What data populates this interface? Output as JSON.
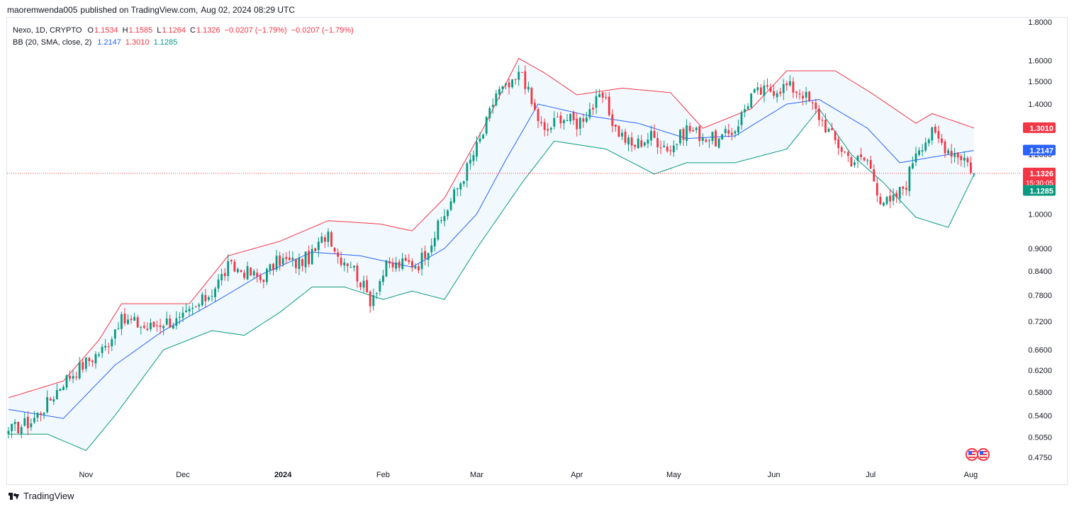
{
  "header": {
    "author": "maoremwenda005",
    "published_text": "published on TradingView.com,",
    "date_text": "Aug 02, 2024 08:29 UTC"
  },
  "legend": {
    "symbol": "Nexo, 1D, CRYPTO",
    "o_label": "O",
    "o_value": "1.1534",
    "h_label": "H",
    "h_value": "1.1585",
    "l_label": "L",
    "l_value": "1.1264",
    "c_label": "C",
    "c_value": "1.1326",
    "change": "−0.0207 (−1.79%)",
    "change2": "−0.0207 (−1.79%)",
    "bb_label": "BB (20, SMA, close, 2)",
    "bb_basis": "1.2147",
    "bb_upper": "1.3010",
    "bb_lower": "1.1285"
  },
  "price_tags": {
    "upper": "1.3010",
    "basis": "1.2147",
    "last": "1.1326",
    "countdown": "15:30:05",
    "lower": "1.1285"
  },
  "footer": {
    "brand": "TradingView"
  },
  "colors": {
    "up": "#089981",
    "down": "#f23645",
    "basis": "#2962ff",
    "upper": "#f23645",
    "lower": "#089981",
    "band_fill": "#2196f3"
  },
  "icons": [
    "tradingview-logo-icon",
    "us-flag-event-icon"
  ],
  "chart_data": {
    "type": "candlestick",
    "scale": "log",
    "title": "",
    "xlabel": "",
    "ylabel": "",
    "grid": false,
    "y_ticks": [
      "1.8000",
      "1.6000",
      "1.5000",
      "1.4000",
      "1.3000",
      "1.2000",
      "1.1000",
      "1.0000",
      "0.9000",
      "0.8400",
      "0.7800",
      "0.7200",
      "0.6600",
      "0.6200",
      "0.5800",
      "0.5400",
      "0.5050",
      "0.4750"
    ],
    "x_ticks": [
      "Nov",
      "Dec",
      "2024",
      "Feb",
      "Mar",
      "Apr",
      "May",
      "Jun",
      "Jul",
      "Aug"
    ],
    "x_tick_dates": [
      "2023-11-01",
      "2023-12-01",
      "2024-01-01",
      "2024-02-01",
      "2024-03-01",
      "2024-04-01",
      "2024-05-01",
      "2024-06-01",
      "2024-07-01",
      "2024-08-01"
    ],
    "ylim": [
      0.46,
      1.85
    ],
    "date_range": [
      "2023-10-08",
      "2024-08-02"
    ],
    "last_price": 1.1326,
    "close_anchors": [
      [
        "2023-10-08",
        0.515
      ],
      [
        "2023-10-15",
        0.53
      ],
      [
        "2023-10-20",
        0.56
      ],
      [
        "2023-10-25",
        0.6
      ],
      [
        "2023-11-01",
        0.635
      ],
      [
        "2023-11-07",
        0.665
      ],
      [
        "2023-11-11",
        0.72
      ],
      [
        "2023-11-15",
        0.72
      ],
      [
        "2023-11-20",
        0.705
      ],
      [
        "2023-11-25",
        0.72
      ],
      [
        "2023-11-30",
        0.72
      ],
      [
        "2023-12-05",
        0.75
      ],
      [
        "2023-12-10",
        0.79
      ],
      [
        "2023-12-15",
        0.85
      ],
      [
        "2023-12-20",
        0.84
      ],
      [
        "2023-12-25",
        0.82
      ],
      [
        "2023-12-31",
        0.87
      ],
      [
        "2024-01-05",
        0.86
      ],
      [
        "2024-01-10",
        0.88
      ],
      [
        "2024-01-15",
        0.95
      ],
      [
        "2024-01-18",
        0.88
      ],
      [
        "2024-01-22",
        0.86
      ],
      [
        "2024-01-28",
        0.77
      ],
      [
        "2024-02-02",
        0.85
      ],
      [
        "2024-02-08",
        0.86
      ],
      [
        "2024-02-12",
        0.86
      ],
      [
        "2024-02-17",
        0.94
      ],
      [
        "2024-02-22",
        1.04
      ],
      [
        "2024-02-27",
        1.15
      ],
      [
        "2024-03-03",
        1.28
      ],
      [
        "2024-03-07",
        1.45
      ],
      [
        "2024-03-12",
        1.48
      ],
      [
        "2024-03-15",
        1.55
      ],
      [
        "2024-03-18",
        1.4
      ],
      [
        "2024-03-22",
        1.28
      ],
      [
        "2024-03-27",
        1.35
      ],
      [
        "2024-04-01",
        1.32
      ],
      [
        "2024-04-05",
        1.38
      ],
      [
        "2024-04-09",
        1.43
      ],
      [
        "2024-04-13",
        1.3
      ],
      [
        "2024-04-18",
        1.23
      ],
      [
        "2024-04-24",
        1.27
      ],
      [
        "2024-04-30",
        1.22
      ],
      [
        "2024-05-05",
        1.3
      ],
      [
        "2024-05-10",
        1.27
      ],
      [
        "2024-05-15",
        1.25
      ],
      [
        "2024-05-20",
        1.3
      ],
      [
        "2024-05-25",
        1.44
      ],
      [
        "2024-05-30",
        1.46
      ],
      [
        "2024-06-05",
        1.48
      ],
      [
        "2024-06-10",
        1.45
      ],
      [
        "2024-06-15",
        1.35
      ],
      [
        "2024-06-20",
        1.25
      ],
      [
        "2024-06-25",
        1.18
      ],
      [
        "2024-06-30",
        1.18
      ],
      [
        "2024-07-04",
        1.05
      ],
      [
        "2024-07-07",
        1.03
      ],
      [
        "2024-07-12",
        1.1
      ],
      [
        "2024-07-15",
        1.22
      ],
      [
        "2024-07-20",
        1.28
      ],
      [
        "2024-07-25",
        1.22
      ],
      [
        "2024-07-30",
        1.19
      ],
      [
        "2024-08-02",
        1.1326
      ]
    ],
    "bollinger": {
      "period": 20,
      "stddev": 2,
      "last": {
        "basis": 1.2147,
        "upper": 1.301,
        "lower": 1.1285
      },
      "upper_anchors": [
        [
          "2023-10-08",
          0.57
        ],
        [
          "2023-10-25",
          0.6
        ],
        [
          "2023-11-05",
          0.68
        ],
        [
          "2023-11-12",
          0.76
        ],
        [
          "2023-11-25",
          0.76
        ],
        [
          "2023-12-03",
          0.76
        ],
        [
          "2023-12-15",
          0.88
        ],
        [
          "2023-12-31",
          0.92
        ],
        [
          "2024-01-15",
          0.98
        ],
        [
          "2024-01-31",
          0.97
        ],
        [
          "2024-02-10",
          0.95
        ],
        [
          "2024-02-20",
          1.05
        ],
        [
          "2024-03-03",
          1.3
        ],
        [
          "2024-03-14",
          1.61
        ],
        [
          "2024-03-22",
          1.54
        ],
        [
          "2024-04-01",
          1.44
        ],
        [
          "2024-04-15",
          1.47
        ],
        [
          "2024-04-30",
          1.45
        ],
        [
          "2024-05-10",
          1.3
        ],
        [
          "2024-05-25",
          1.38
        ],
        [
          "2024-06-05",
          1.55
        ],
        [
          "2024-06-20",
          1.55
        ],
        [
          "2024-07-01",
          1.45
        ],
        [
          "2024-07-15",
          1.32
        ],
        [
          "2024-07-20",
          1.36
        ],
        [
          "2024-08-02",
          1.301
        ]
      ],
      "basis_anchors": [
        [
          "2023-10-08",
          0.55
        ],
        [
          "2023-10-25",
          0.535
        ],
        [
          "2023-11-10",
          0.63
        ],
        [
          "2023-11-25",
          0.7
        ],
        [
          "2023-12-10",
          0.76
        ],
        [
          "2023-12-25",
          0.83
        ],
        [
          "2024-01-10",
          0.89
        ],
        [
          "2024-01-25",
          0.88
        ],
        [
          "2024-02-10",
          0.85
        ],
        [
          "2024-02-20",
          0.9
        ],
        [
          "2024-03-01",
          1.0
        ],
        [
          "2024-03-10",
          1.18
        ],
        [
          "2024-03-20",
          1.4
        ],
        [
          "2024-04-05",
          1.35
        ],
        [
          "2024-04-20",
          1.32
        ],
        [
          "2024-05-05",
          1.26
        ],
        [
          "2024-05-20",
          1.27
        ],
        [
          "2024-06-05",
          1.4
        ],
        [
          "2024-06-15",
          1.42
        ],
        [
          "2024-06-30",
          1.3
        ],
        [
          "2024-07-10",
          1.17
        ],
        [
          "2024-07-20",
          1.19
        ],
        [
          "2024-08-02",
          1.2147
        ]
      ],
      "lower_anchors": [
        [
          "2023-10-08",
          0.51
        ],
        [
          "2023-10-20",
          0.51
        ],
        [
          "2023-11-01",
          0.485
        ],
        [
          "2023-11-10",
          0.54
        ],
        [
          "2023-11-25",
          0.66
        ],
        [
          "2023-12-10",
          0.7
        ],
        [
          "2023-12-20",
          0.69
        ],
        [
          "2023-12-31",
          0.74
        ],
        [
          "2024-01-10",
          0.8
        ],
        [
          "2024-01-20",
          0.8
        ],
        [
          "2024-02-01",
          0.77
        ],
        [
          "2024-02-10",
          0.79
        ],
        [
          "2024-02-20",
          0.77
        ],
        [
          "2024-03-01",
          0.9
        ],
        [
          "2024-03-15",
          1.1
        ],
        [
          "2024-03-25",
          1.25
        ],
        [
          "2024-04-10",
          1.22
        ],
        [
          "2024-04-25",
          1.13
        ],
        [
          "2024-05-05",
          1.17
        ],
        [
          "2024-05-20",
          1.17
        ],
        [
          "2024-06-05",
          1.22
        ],
        [
          "2024-06-15",
          1.38
        ],
        [
          "2024-06-25",
          1.2
        ],
        [
          "2024-07-05",
          1.1
        ],
        [
          "2024-07-15",
          0.99
        ],
        [
          "2024-07-25",
          0.96
        ],
        [
          "2024-08-02",
          1.1285
        ]
      ]
    }
  }
}
